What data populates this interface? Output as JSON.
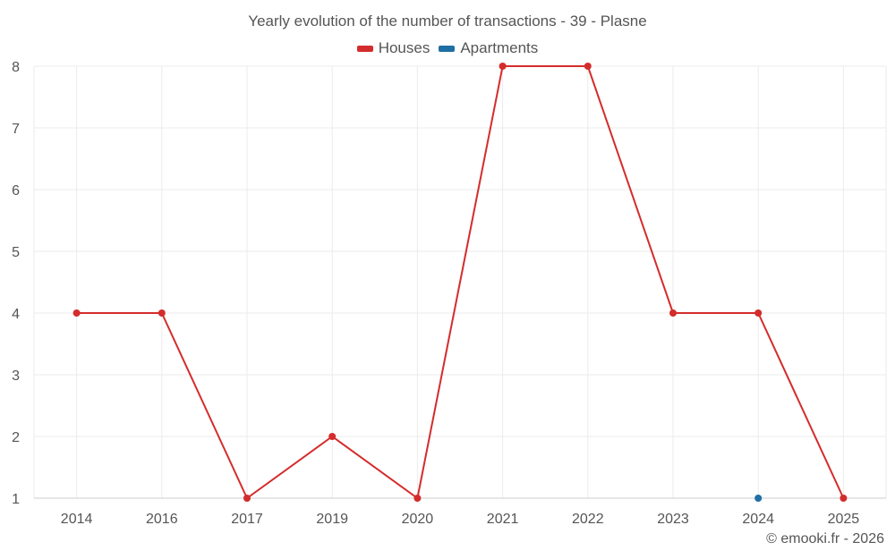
{
  "title": "Yearly evolution of the number of transactions - 39 - Plasne",
  "credit": "© emooki.fr - 2026",
  "chart_data": {
    "type": "line",
    "categories": [
      "2014",
      "2016",
      "2017",
      "2019",
      "2020",
      "2021",
      "2022",
      "2023",
      "2024",
      "2025"
    ],
    "ylim": [
      1,
      8
    ],
    "yticks": [
      "1",
      "2",
      "3",
      "4",
      "5",
      "6",
      "7",
      "8"
    ],
    "grid": true,
    "legend_position": "top-center",
    "series": [
      {
        "name": "Houses",
        "color": "#d42c2c",
        "values": [
          4,
          4,
          1,
          2,
          1,
          8,
          8,
          4,
          4,
          1
        ],
        "line": true
      },
      {
        "name": "Apartments",
        "color": "#1f6fa5",
        "values": [
          null,
          null,
          null,
          null,
          null,
          null,
          null,
          null,
          1,
          null
        ],
        "line": false
      }
    ]
  }
}
